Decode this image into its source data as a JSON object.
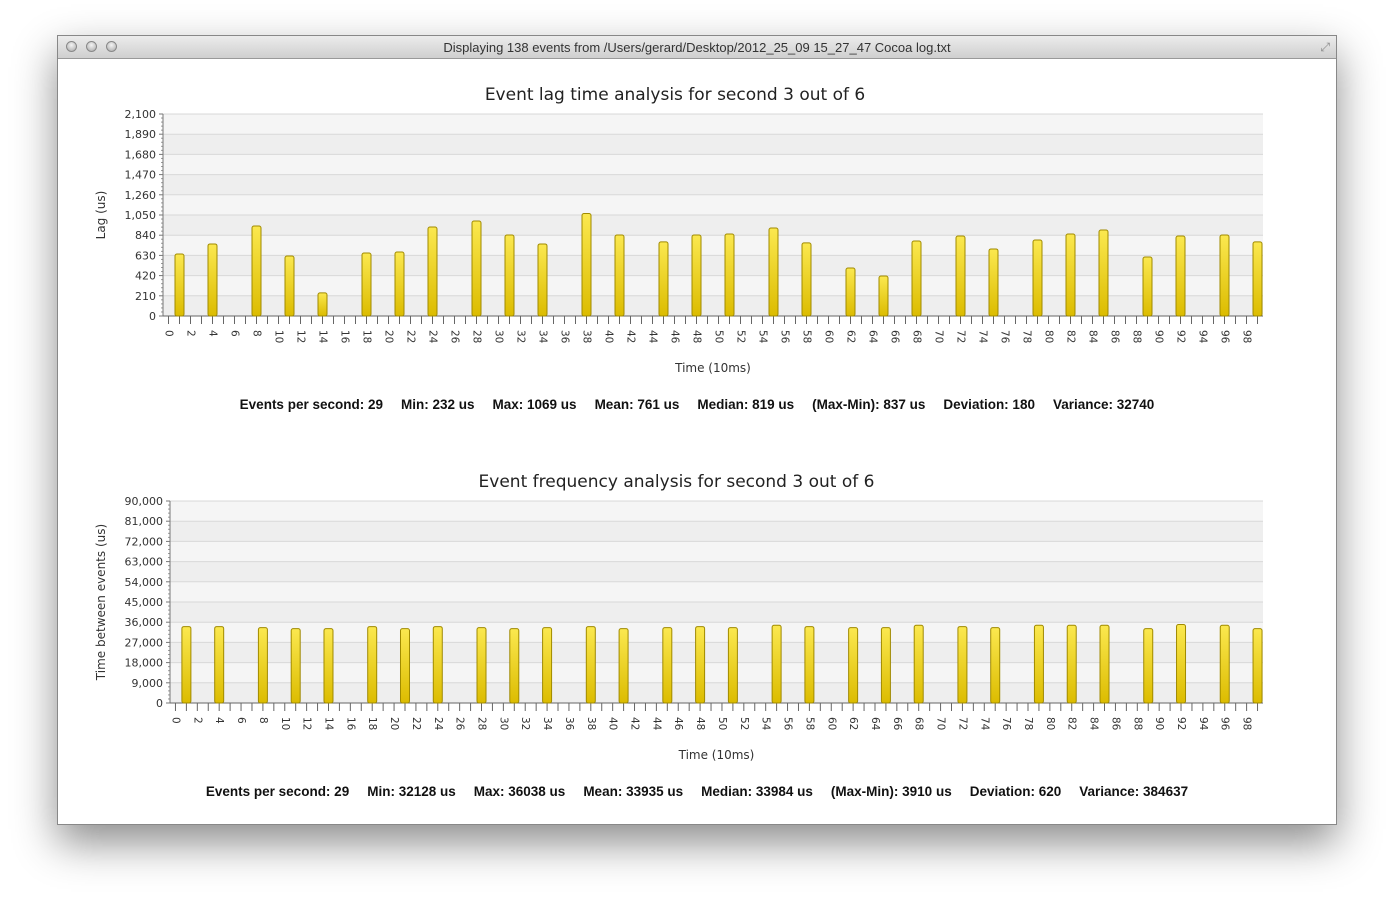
{
  "window": {
    "title": "Displaying 138 events from /Users/gerard/Desktop/2012_25_09 15_27_47 Cocoa log.txt",
    "close_icon": "close-icon",
    "minimize_icon": "minimize-icon",
    "zoom_icon": "zoom-icon",
    "fullscreen_icon": "fullscreen-icon"
  },
  "colors": {
    "bar_top": "#fbe84f",
    "bar_bottom": "#dcbc00",
    "bar_stroke": "#a08a00",
    "band_a": "#f5f5f5",
    "band_b": "#eeeeee",
    "grid": "#d8d8d8"
  },
  "chart_data": [
    {
      "type": "bar",
      "title": "Event lag time analysis for second 3 out of 6",
      "xlabel": "Time (10ms)",
      "ylabel": "Lag (us)",
      "xlim": [
        0,
        99
      ],
      "ylim": [
        0,
        2100
      ],
      "yticks": [
        "0",
        "210",
        "420",
        "630",
        "840",
        "1,050",
        "1,260",
        "1,470",
        "1,680",
        "1,890",
        "2,100"
      ],
      "xtick_labels": [
        "0",
        "2",
        "4",
        "6",
        "8",
        "10",
        "12",
        "14",
        "16",
        "18",
        "20",
        "22",
        "24",
        "26",
        "28",
        "30",
        "32",
        "34",
        "36",
        "38",
        "40",
        "42",
        "44",
        "46",
        "48",
        "50",
        "52",
        "54",
        "56",
        "58",
        "60",
        "62",
        "64",
        "66",
        "68",
        "70",
        "72",
        "74",
        "76",
        "78",
        "80",
        "82",
        "84",
        "86",
        "88",
        "90",
        "92",
        "94",
        "96",
        "98"
      ],
      "grid": true,
      "x": [
        1,
        4,
        8,
        11,
        14,
        18,
        21,
        24,
        28,
        31,
        34,
        38,
        41,
        45,
        48,
        51,
        55,
        58,
        62,
        65,
        68,
        72,
        75,
        79,
        82,
        85,
        89,
        92,
        96,
        99
      ],
      "values": [
        645,
        749,
        936,
        624,
        240,
        655,
        665,
        925,
        988,
        842,
        749,
        1065,
        842,
        770,
        842,
        852,
        915,
        760,
        499,
        416,
        780,
        832,
        697,
        790,
        852,
        894,
        613,
        832,
        842,
        770
      ],
      "stats": [
        "Events per second: 29",
        "Min: 232 us",
        "Max: 1069 us",
        "Mean: 761 us",
        "Median: 819 us",
        "(Max-Min): 837 us",
        "Deviation: 180",
        "Variance: 32740"
      ]
    },
    {
      "type": "bar",
      "title": "Event frequency analysis for second 3 out of 6",
      "xlabel": "Time (10ms)",
      "ylabel": "Time between events (us)",
      "xlim": [
        0,
        99
      ],
      "ylim": [
        0,
        90000
      ],
      "yticks": [
        "0",
        "9,000",
        "18,000",
        "27,000",
        "36,000",
        "45,000",
        "54,000",
        "63,000",
        "72,000",
        "81,000",
        "90,000"
      ],
      "xtick_labels": [
        "0",
        "2",
        "4",
        "6",
        "8",
        "10",
        "12",
        "14",
        "16",
        "18",
        "20",
        "22",
        "24",
        "26",
        "28",
        "30",
        "32",
        "34",
        "36",
        "38",
        "40",
        "42",
        "44",
        "46",
        "48",
        "50",
        "52",
        "54",
        "56",
        "58",
        "60",
        "62",
        "64",
        "66",
        "68",
        "70",
        "72",
        "74",
        "76",
        "78",
        "80",
        "82",
        "84",
        "86",
        "88",
        "90",
        "92",
        "94",
        "96",
        "98"
      ],
      "grid": true,
      "x": [
        1,
        4,
        8,
        11,
        14,
        18,
        21,
        24,
        28,
        31,
        34,
        38,
        41,
        45,
        48,
        51,
        55,
        58,
        62,
        65,
        68,
        72,
        75,
        79,
        82,
        85,
        89,
        92,
        96,
        99
      ],
      "values": [
        34050,
        34050,
        33600,
        33150,
        33150,
        34050,
        33150,
        34050,
        33600,
        33150,
        33600,
        34050,
        33150,
        33600,
        34050,
        33600,
        34650,
        34050,
        33600,
        33600,
        34650,
        34050,
        33600,
        34650,
        34650,
        34650,
        33150,
        34950,
        34650,
        33150
      ],
      "stats": [
        "Events per second: 29",
        "Min: 32128 us",
        "Max: 36038 us",
        "Mean: 33935 us",
        "Median: 33984 us",
        "(Max-Min): 3910 us",
        "Deviation: 620",
        "Variance: 384637"
      ]
    }
  ]
}
